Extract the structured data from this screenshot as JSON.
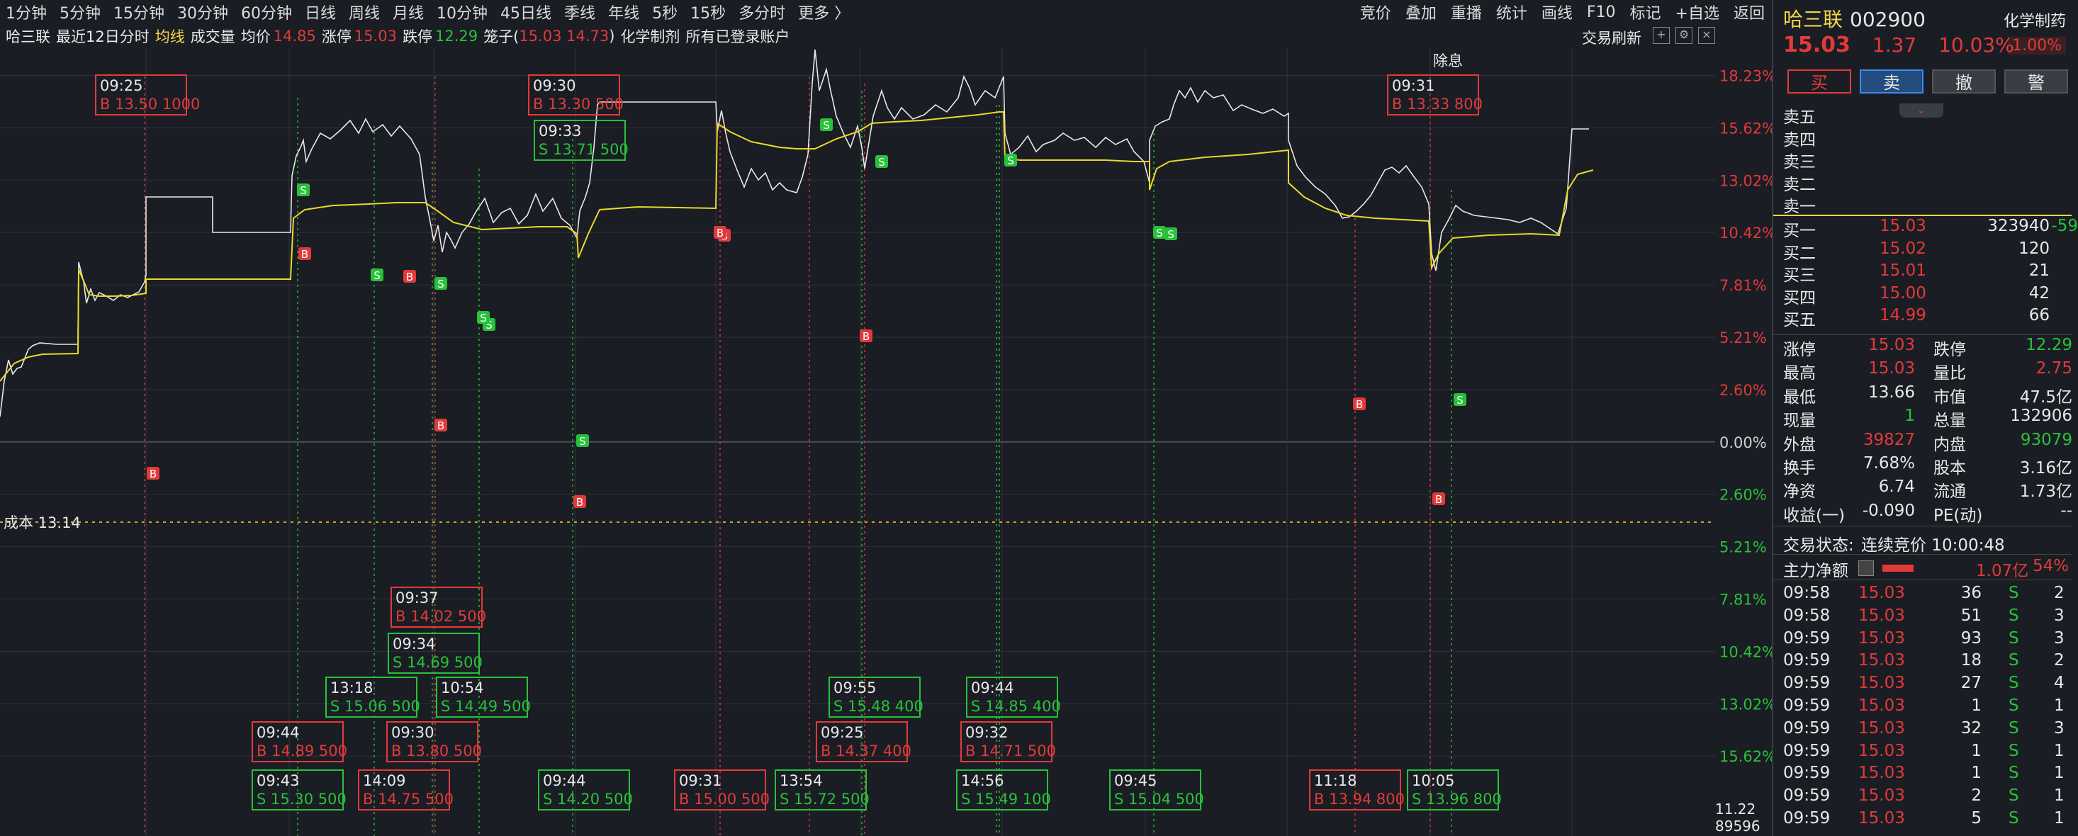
{
  "toolbar": {
    "timeframes": [
      "1分钟",
      "5分钟",
      "15分钟",
      "30分钟",
      "60分钟",
      "日线",
      "周线",
      "月线",
      "10分钟",
      "45日线",
      "季线",
      "年线",
      "5秒",
      "15秒",
      "多分时",
      "更多 〉"
    ],
    "right_menu": [
      "竞价",
      "叠加",
      "重播",
      "统计",
      "画线",
      "F10",
      "标记",
      "+自选",
      "返回"
    ]
  },
  "infobar": {
    "stock": "哈三联",
    "mode": "最近12日分时",
    "avg_line": "均线",
    "volume": "成交量",
    "avg_label": "均价",
    "avg_value": "14.85",
    "limit_up_label": "涨停",
    "limit_up_value": "15.03",
    "limit_down_label": "跌停",
    "limit_down_value": "12.29",
    "cage_label": "笼子(",
    "cage_value": "15.03 14.73",
    "cage_close": ")",
    "industry": "化学制剂",
    "accounts": "所有已登录账户",
    "refresh": "交易刷新"
  },
  "chart": {
    "right_axis": [
      {
        "label": "18.23%",
        "color": "red"
      },
      {
        "label": "15.62%",
        "color": "red"
      },
      {
        "label": "13.02%",
        "color": "red"
      },
      {
        "label": "10.42%",
        "color": "red"
      },
      {
        "label": "7.81%",
        "color": "red"
      },
      {
        "label": "5.21%",
        "color": "red"
      },
      {
        "label": "2.60%",
        "color": "red"
      },
      {
        "label": "0.00%",
        "color": "white"
      },
      {
        "label": "2.60%",
        "color": "green"
      },
      {
        "label": "5.21%",
        "color": "green"
      },
      {
        "label": "7.81%",
        "color": "green"
      },
      {
        "label": "10.42%",
        "color": "green"
      },
      {
        "label": "13.02%",
        "color": "green"
      },
      {
        "label": "15.62%",
        "color": "green"
      }
    ],
    "cost_label": "成本 13.14",
    "ex_dividend": "除息",
    "annotations": [
      {
        "time": "09:25",
        "detail": "B 13.50  1000",
        "side": "B"
      },
      {
        "time": "09:30",
        "detail": "B 13.30  500",
        "side": "B"
      },
      {
        "time": "09:33",
        "detail": "S 13.71  500",
        "side": "S"
      },
      {
        "time": "09:31",
        "detail": "B 13.33  800",
        "side": "B"
      },
      {
        "time": "09:37",
        "detail": "B 14.02  500",
        "side": "B"
      },
      {
        "time": "09:34",
        "detail": "S 14.69  500",
        "side": "S"
      },
      {
        "time": "13:18",
        "detail": "S 15.06  500",
        "side": "S"
      },
      {
        "time": "10:54",
        "detail": "S 14.49  500",
        "side": "S"
      },
      {
        "time": "09:55",
        "detail": "S 15.48  400",
        "side": "S"
      },
      {
        "time": "09:44",
        "detail": "S 14.85  400",
        "side": "S"
      },
      {
        "time": "09:44",
        "detail": "B 14.89  500",
        "side": "B"
      },
      {
        "time": "09:30",
        "detail": "B 13.80  500",
        "side": "B"
      },
      {
        "time": "09:25",
        "detail": "B 14.37  400",
        "side": "B"
      },
      {
        "time": "09:32",
        "detail": "B 14.71  500",
        "side": "B"
      },
      {
        "time": "09:43",
        "detail": "S 15.30  500",
        "side": "S"
      },
      {
        "time": "14:09",
        "detail": "B 14.75  500",
        "side": "B"
      },
      {
        "time": "09:44",
        "detail": "S 14.20  500",
        "side": "S"
      },
      {
        "time": "09:31",
        "detail": "B 15.00  500",
        "side": "B"
      },
      {
        "time": "13:54",
        "detail": "S 15.72  500",
        "side": "S"
      },
      {
        "time": "14:56",
        "detail": "S 15.49  100",
        "side": "S"
      },
      {
        "time": "09:45",
        "detail": "S 15.04  500",
        "side": "S"
      },
      {
        "time": "11:18",
        "detail": "B 13.94  800",
        "side": "B"
      },
      {
        "time": "10:05",
        "detail": "S 13.96  800",
        "side": "S"
      }
    ],
    "marker_b": "B",
    "marker_s": "S"
  },
  "bottom_left": {
    "value1": "11.22",
    "value2": "89596"
  },
  "panel": {
    "name": "哈三联",
    "code": "002900",
    "industry_tag": "化学制药",
    "tag_pct": "1.00%",
    "price": "15.03",
    "change": "1.37",
    "change_pct": "10.03%",
    "buttons": {
      "buy": "买",
      "sell": "卖",
      "cancel": "撤",
      "alert": "警"
    },
    "asks": [
      {
        "label": "卖五"
      },
      {
        "label": "卖四"
      },
      {
        "label": "卖三"
      },
      {
        "label": "卖二"
      },
      {
        "label": "卖一"
      }
    ],
    "bids": [
      {
        "label": "买一",
        "price": "15.03",
        "vol": "323940",
        "delta": "-59"
      },
      {
        "label": "买二",
        "price": "15.02",
        "vol": "120",
        "delta": ""
      },
      {
        "label": "买三",
        "price": "15.01",
        "vol": "21",
        "delta": ""
      },
      {
        "label": "买四",
        "price": "15.00",
        "vol": "42",
        "delta": ""
      },
      {
        "label": "买五",
        "price": "14.99",
        "vol": "66",
        "delta": ""
      }
    ],
    "stats": [
      {
        "l1": "涨停",
        "v1": "15.03",
        "c1": "red",
        "l2": "跌停",
        "v2": "12.29",
        "c2": "green"
      },
      {
        "l1": "最高",
        "v1": "15.03",
        "c1": "red",
        "l2": "量比",
        "v2": "2.75",
        "c2": "red"
      },
      {
        "l1": "最低",
        "v1": "13.66",
        "c1": "white",
        "l2": "市值",
        "v2": "47.5亿",
        "c2": "white"
      },
      {
        "l1": "现量",
        "v1": "1",
        "c1": "green",
        "l2": "总量",
        "v2": "132906",
        "c2": "white"
      },
      {
        "l1": "外盘",
        "v1": "39827",
        "c1": "red",
        "l2": "内盘",
        "v2": "93079",
        "c2": "green"
      },
      {
        "l1": "换手",
        "v1": "7.68%",
        "c1": "white",
        "l2": "股本",
        "v2": "3.16亿",
        "c2": "white"
      },
      {
        "l1": "净资",
        "v1": "6.74",
        "c1": "white",
        "l2": "流通",
        "v2": "1.73亿",
        "c2": "white"
      },
      {
        "l1": "收益(一)",
        "v1": "-0.090",
        "c1": "white",
        "l2": "PE(动)",
        "v2": "--",
        "c2": "white"
      }
    ],
    "trade_status_label": "交易状态:",
    "trade_status_value": "连续竞价 10:00:48",
    "main_flow_label": "主力净额",
    "main_flow_value": "1.07亿",
    "main_flow_pct": "54%",
    "ticks": [
      {
        "time": "09:58",
        "price": "15.03",
        "vol": "36",
        "side": "S",
        "n": "2"
      },
      {
        "time": "09:58",
        "price": "15.03",
        "vol": "51",
        "side": "S",
        "n": "3"
      },
      {
        "time": "09:59",
        "price": "15.03",
        "vol": "93",
        "side": "S",
        "n": "3"
      },
      {
        "time": "09:59",
        "price": "15.03",
        "vol": "18",
        "side": "S",
        "n": "2"
      },
      {
        "time": "09:59",
        "price": "15.03",
        "vol": "27",
        "side": "S",
        "n": "4"
      },
      {
        "time": "09:59",
        "price": "15.03",
        "vol": "1",
        "side": "S",
        "n": "1"
      },
      {
        "time": "09:59",
        "price": "15.03",
        "vol": "32",
        "side": "S",
        "n": "3"
      },
      {
        "time": "09:59",
        "price": "15.03",
        "vol": "1",
        "side": "S",
        "n": "1"
      },
      {
        "time": "09:59",
        "price": "15.03",
        "vol": "1",
        "side": "S",
        "n": "1"
      },
      {
        "time": "09:59",
        "price": "15.03",
        "vol": "2",
        "side": "S",
        "n": "1"
      },
      {
        "time": "09:59",
        "price": "15.03",
        "vol": "5",
        "side": "S",
        "n": "1"
      }
    ]
  }
}
